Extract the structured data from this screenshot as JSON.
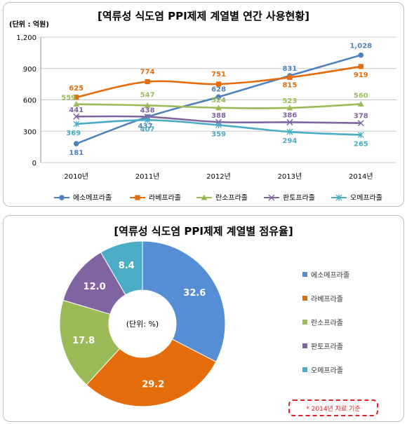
{
  "line_chart": {
    "title": "[역류성 식도염 PPI제제 계열별 연간 사용현황]",
    "unit": "(단위 : 억원)"
  },
  "donut_chart": {
    "title": "[역류성 식도염 PPI제제 계열별 점유율]",
    "center_label": "(단위: %)",
    "note": "* 2014년 자료 기준"
  },
  "chart_data": [
    {
      "type": "line",
      "title": "[역류성 식도염 PPI제제 계열별 연간 사용현황]",
      "ylabel": "(단위 : 억원)",
      "categories": [
        "2010년",
        "2011년",
        "2012년",
        "2013년",
        "2014년"
      ],
      "ylim": [
        0,
        1200
      ],
      "yticks": [
        "0",
        "300",
        "600",
        "900",
        "1,200"
      ],
      "grid": true,
      "legend": "bottom",
      "series": [
        {
          "name": "에소메프라졸",
          "values": [
            181,
            437,
            628,
            831,
            1028
          ],
          "labels": [
            "181",
            "437",
            "628",
            "831",
            "1,028"
          ],
          "color": "#4f81bd",
          "marker": "circle"
        },
        {
          "name": "라베프라졸",
          "values": [
            625,
            774,
            751,
            815,
            919
          ],
          "labels": [
            "625",
            "774",
            "751",
            "815",
            "919"
          ],
          "color": "#e46c0a",
          "marker": "square"
        },
        {
          "name": "란소프라졸",
          "values": [
            559,
            547,
            524,
            523,
            560
          ],
          "labels": [
            "559",
            "547",
            "524",
            "523",
            "560"
          ],
          "color": "#9bbb59",
          "marker": "triangle"
        },
        {
          "name": "판토프라졸",
          "values": [
            441,
            438,
            388,
            386,
            378
          ],
          "labels": [
            "441",
            "438",
            "388",
            "386",
            "378"
          ],
          "color": "#8064a2",
          "marker": "x"
        },
        {
          "name": "오메프라졸",
          "values": [
            369,
            407,
            359,
            294,
            265
          ],
          "labels": [
            "369",
            "407",
            "359",
            "294",
            "265"
          ],
          "color": "#4bacc6",
          "marker": "star"
        }
      ]
    },
    {
      "type": "pie",
      "title": "[역류성 식도염 PPI제제 계열별 점유율]",
      "legend": "right",
      "labels": [
        "에소메프라졸",
        "라베프라졸",
        "란소프라졸",
        "판토프라졸",
        "오메프라졸"
      ],
      "values": [
        32.6,
        29.2,
        17.8,
        12.0,
        8.4
      ],
      "value_labels": [
        "32.6",
        "29.2",
        "17.8",
        "12.0",
        "8.4"
      ],
      "colors": [
        "#558ed5",
        "#e46c0a",
        "#9bbb59",
        "#8064a2",
        "#4bacc6"
      ]
    }
  ]
}
